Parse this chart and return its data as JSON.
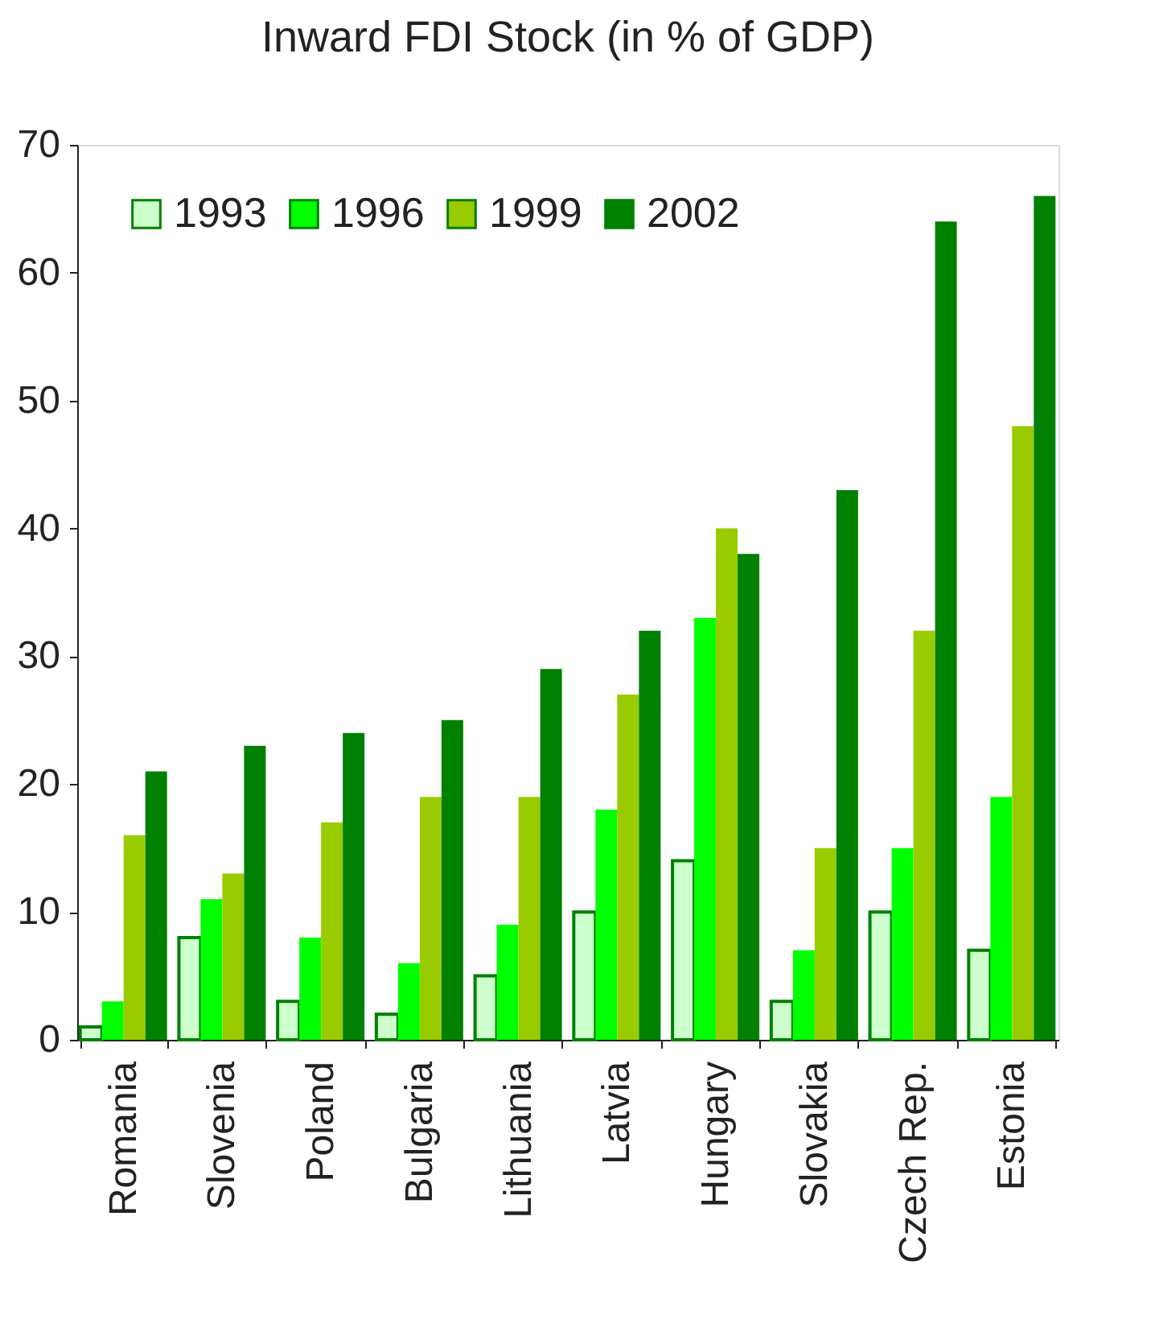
{
  "chart_data": {
    "type": "bar",
    "title": "Inward FDI Stock (in % of GDP)",
    "categories": [
      "Romania",
      "Slovenia",
      "Poland",
      "Bulgaria",
      "Lithuania",
      "Latvia",
      "Hungary",
      "Slovakia",
      "Czech Rep.",
      "Estonia"
    ],
    "series": [
      {
        "name": "1993",
        "color": "#ccffcc",
        "values": [
          1,
          8,
          3,
          2,
          5,
          10,
          14,
          3,
          10,
          7
        ]
      },
      {
        "name": "1996",
        "color": "#00ff00",
        "values": [
          3,
          11,
          8,
          6,
          9,
          18,
          33,
          7,
          15,
          19
        ]
      },
      {
        "name": "1999",
        "color": "#99cc00",
        "values": [
          16,
          13,
          17,
          19,
          19,
          27,
          40,
          15,
          32,
          48
        ]
      },
      {
        "name": "2002",
        "color": "#008000",
        "values": [
          21,
          23,
          24,
          25,
          29,
          32,
          38,
          43,
          64,
          66
        ]
      }
    ],
    "ylim": [
      0,
      70
    ],
    "yticks": [
      0,
      10,
      20,
      30,
      40,
      50,
      60,
      70
    ],
    "grid": false,
    "legend": "top left"
  }
}
